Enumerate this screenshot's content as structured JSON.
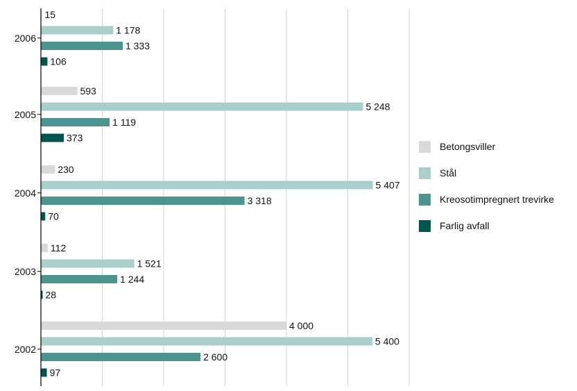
{
  "chart_data": {
    "type": "bar",
    "orientation": "horizontal",
    "categories": [
      "2006",
      "2005",
      "2004",
      "2003",
      "2002"
    ],
    "xlim": [
      0,
      6000
    ],
    "grid": true,
    "legend_position": "right",
    "series": [
      {
        "name": "Betongsviller",
        "color": "#d9d9d9",
        "values": [
          15,
          593,
          230,
          112,
          4000
        ],
        "labels": [
          "15",
          "593",
          "230",
          "112",
          "4 000"
        ]
      },
      {
        "name": "Stål",
        "color": "#a8cfcc",
        "values": [
          1178,
          5248,
          5407,
          1521,
          5400
        ],
        "labels": [
          "1 178",
          "5 248",
          "5 407",
          "1 521",
          "5 400"
        ]
      },
      {
        "name": "Kreosotimpregnert trevirke",
        "color": "#4f9390",
        "values": [
          1333,
          1119,
          3318,
          1244,
          2600
        ],
        "labels": [
          "1 333",
          "1 119",
          "3 318",
          "1 244",
          "2 600"
        ]
      },
      {
        "name": "Farlig avfall",
        "color": "#00564f",
        "values": [
          106,
          373,
          70,
          28,
          97
        ],
        "labels": [
          "106",
          "373",
          "70",
          "28",
          "97"
        ]
      }
    ]
  }
}
